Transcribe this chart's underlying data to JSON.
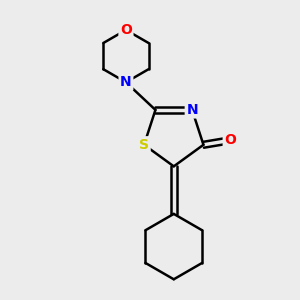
{
  "background_color": "#ececec",
  "bond_color": "#000000",
  "bond_width": 1.8,
  "atom_colors": {
    "O": "#ff0000",
    "N": "#0000ff",
    "S": "#cccc00",
    "C": "#000000"
  },
  "font_size": 10,
  "fig_size": [
    3.0,
    3.0
  ],
  "dpi": 100,
  "xlim": [
    0,
    10
  ],
  "ylim": [
    0,
    10
  ]
}
